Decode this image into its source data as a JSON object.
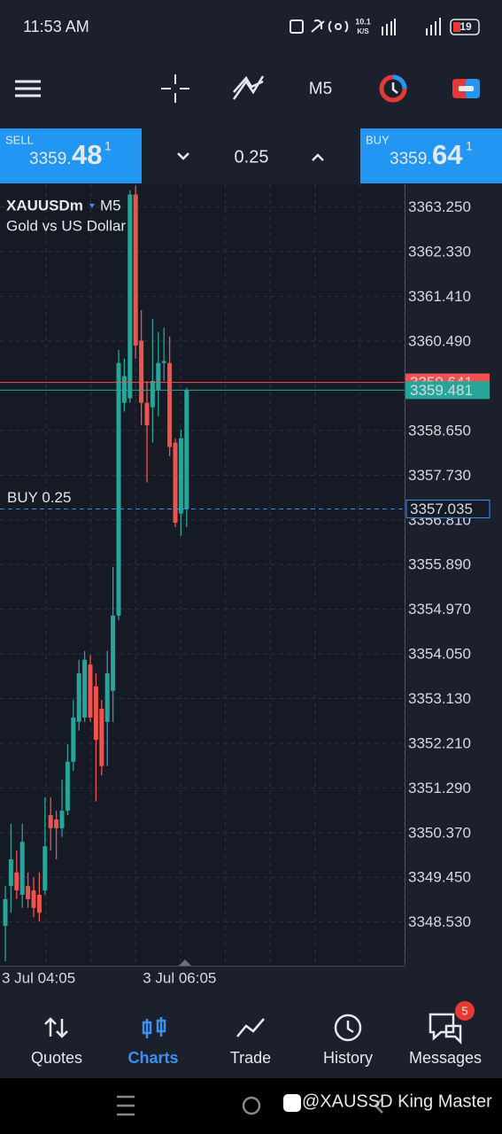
{
  "status_bar": {
    "time": "11:53 AM",
    "speed": "10.1",
    "speed_unit": "K/S",
    "battery": "19"
  },
  "toolbar": {
    "timeframe": "M5"
  },
  "trade_panel": {
    "sell_label": "SELL",
    "sell_price_main": "3359.",
    "sell_price_big": "48",
    "sell_price_sup": "1",
    "volume": "0.25",
    "buy_label": "BUY",
    "buy_price_main": "3359.",
    "buy_price_big": "64",
    "buy_price_sup": "1"
  },
  "chart_data": {
    "type": "candlestick",
    "symbol": "XAUUSDm",
    "timeframe": "M5",
    "description": "Gold vs US Dollar",
    "categories": [
      "3 Jul 04:05",
      null,
      null,
      null,
      null,
      null,
      null,
      null,
      null,
      null,
      null,
      null,
      null,
      null,
      null,
      null,
      null,
      null,
      null,
      null,
      null,
      null,
      null,
      null,
      null,
      null,
      null,
      null,
      null,
      null,
      null,
      null,
      "3 Jul 06:05"
    ],
    "open": [
      3348.45,
      3349.27,
      3349.55,
      3349.09,
      3349.27,
      3349.18,
      3349.09,
      3349.18,
      3350.73,
      3350.64,
      3350.46,
      3350.82,
      3351.83,
      3352.65,
      3352.74,
      3353.83,
      3353.38,
      3352.92,
      3352.65,
      3353.29,
      3354.84,
      3359.22,
      3359.31,
      3363.51,
      3360.5,
      3359.22,
      3359.13,
      3359.49,
      3360.04,
      3360.04,
      3358.4,
      3356.94,
      3357.03
    ],
    "high": [
      3349.27,
      3350.55,
      3350.0,
      3350.55,
      3349.55,
      3349.45,
      3349.55,
      3351.1,
      3351.1,
      3350.82,
      3351.46,
      3352.19,
      3353.1,
      3353.93,
      3354.11,
      3354.02,
      3353.65,
      3353.1,
      3354.11,
      3355.84,
      3360.31,
      3360.13,
      3363.6,
      3363.69,
      3361.13,
      3359.67,
      3360.95,
      3360.68,
      3360.77,
      3360.59,
      3358.49,
      3358.67,
      3359.53
    ],
    "low": [
      3347.72,
      3348.72,
      3349.0,
      3348.82,
      3348.82,
      3348.63,
      3348.54,
      3349.09,
      3350.0,
      3349.82,
      3350.28,
      3350.73,
      3351.64,
      3352.47,
      3352.65,
      3352.65,
      3351.01,
      3351.55,
      3351.74,
      3352.65,
      3354.75,
      3359.04,
      3359.22,
      3360.13,
      3358.76,
      3357.58,
      3358.4,
      3358.94,
      3359.67,
      3358.12,
      3356.66,
      3356.48,
      3356.66
    ],
    "close": [
      3349.0,
      3349.82,
      3349.18,
      3350.18,
      3349.0,
      3348.82,
      3348.72,
      3350.09,
      3350.46,
      3350.46,
      3350.82,
      3351.83,
      3352.74,
      3353.65,
      3353.93,
      3352.74,
      3352.28,
      3351.74,
      3353.65,
      3354.84,
      3360.04,
      3359.77,
      3363.51,
      3360.4,
      3359.22,
      3358.76,
      3359.67,
      3360.04,
      3360.08,
      3358.31,
      3356.75,
      3358.49,
      3359.48
    ],
    "up_color": "#26a69a",
    "down_color": "#ef5350",
    "ylim": [
      3347.63,
      3363.72
    ],
    "yticks": [
      {
        "value": 3363.25,
        "label": "3363.250"
      },
      {
        "value": 3362.33,
        "label": "3362.330"
      },
      {
        "value": 3361.41,
        "label": "3361.410"
      },
      {
        "value": 3360.49,
        "label": "3360.490"
      },
      {
        "value": 3358.65,
        "label": "3358.650"
      },
      {
        "value": 3357.73,
        "label": "3357.730"
      },
      {
        "value": 3356.81,
        "label": "3356.810"
      },
      {
        "value": 3355.89,
        "label": "3355.890"
      },
      {
        "value": 3354.97,
        "label": "3354.970"
      },
      {
        "value": 3354.05,
        "label": "3354.050"
      },
      {
        "value": 3353.13,
        "label": "3353.130"
      },
      {
        "value": 3352.21,
        "label": "3352.210"
      },
      {
        "value": 3351.29,
        "label": "3351.290"
      },
      {
        "value": 3350.37,
        "label": "3350.370"
      },
      {
        "value": 3349.45,
        "label": "3349.450"
      },
      {
        "value": 3348.53,
        "label": "3348.530"
      }
    ],
    "grid": true,
    "ask_price": 3359.641,
    "bid_price": 3359.481,
    "order": {
      "label": "BUY 0.25",
      "price": 3357.035
    }
  },
  "nav": [
    "Quotes",
    "Charts",
    "Trade",
    "History",
    "Messages"
  ],
  "messages_badge": "5",
  "watermark": "@XAUSSD King Master"
}
